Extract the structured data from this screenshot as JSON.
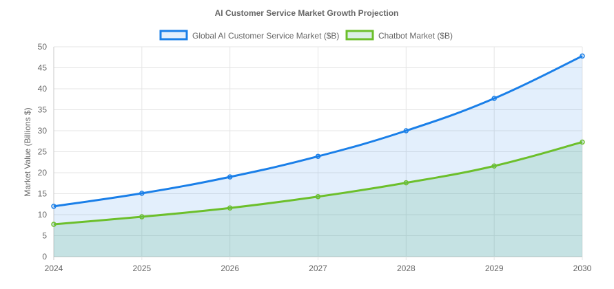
{
  "chart_data": {
    "type": "area",
    "title": "AI Customer Service Market Growth Projection",
    "ylabel": "Market Value (Billions $)",
    "xlabel": "",
    "categories": [
      "2024",
      "2025",
      "2026",
      "2027",
      "2028",
      "2029",
      "2030"
    ],
    "ylim": [
      0,
      50
    ],
    "yticks": [
      "0",
      "5",
      "10",
      "15",
      "20",
      "25",
      "30",
      "35",
      "40",
      "45",
      "50"
    ],
    "grid": true,
    "legend_position": "top",
    "series": [
      {
        "name": "Global AI Customer Service Market ($B)",
        "values": [
          12.0,
          15.1,
          19.0,
          23.9,
          30.0,
          37.7,
          47.8
        ],
        "color": "#1a7fe8",
        "fill": "rgba(26,127,232,0.12)"
      },
      {
        "name": "Chatbot Market ($B)",
        "values": [
          7.7,
          9.5,
          11.6,
          14.3,
          17.6,
          21.6,
          27.3
        ],
        "color": "#6cbf2b",
        "fill": "rgba(90,180,140,0.22)"
      }
    ]
  }
}
